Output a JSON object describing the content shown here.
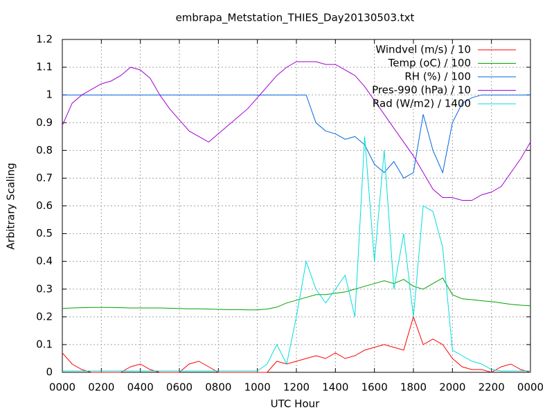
{
  "chart_data": {
    "type": "line",
    "title": "embrapa_Metstation_THIES_Day20130503.txt",
    "x_label": "UTC Hour",
    "y_label": "Arbitrary Scaling",
    "x": [
      0,
      0.5,
      1,
      1.5,
      2,
      2.5,
      3,
      3.5,
      4,
      4.5,
      5,
      5.5,
      6,
      6.5,
      7,
      7.5,
      8,
      8.5,
      9,
      9.5,
      10,
      10.5,
      11,
      11.5,
      12,
      12.5,
      13,
      13.5,
      14,
      14.5,
      15,
      15.5,
      16,
      16.5,
      17,
      17.5,
      18,
      18.5,
      19,
      19.5,
      20,
      20.5,
      21,
      21.5,
      22,
      22.5,
      23,
      23.5,
      24
    ],
    "xlim": [
      0,
      24
    ],
    "xticks": [
      {
        "value": 0,
        "label": "0000"
      },
      {
        "value": 2,
        "label": "0200"
      },
      {
        "value": 4,
        "label": "0400"
      },
      {
        "value": 6,
        "label": "0600"
      },
      {
        "value": 8,
        "label": "0800"
      },
      {
        "value": 10,
        "label": "1000"
      },
      {
        "value": 12,
        "label": "1200"
      },
      {
        "value": 14,
        "label": "1400"
      },
      {
        "value": 16,
        "label": "1600"
      },
      {
        "value": 18,
        "label": "1800"
      },
      {
        "value": 20,
        "label": "2000"
      },
      {
        "value": 22,
        "label": "2200"
      },
      {
        "value": 24,
        "label": "0000"
      }
    ],
    "ylim": [
      0,
      1.2
    ],
    "yticks": [
      0,
      0.1,
      0.2,
      0.3,
      0.4,
      0.5,
      0.6,
      0.7,
      0.8,
      0.9,
      1,
      1.1,
      1.2
    ],
    "grid": true,
    "legend": "top-right",
    "series": [
      {
        "name": "Windvel (m/s) / 10",
        "color": "#ff0000",
        "values": [
          0.07,
          0.03,
          0.01,
          0,
          0,
          0,
          0,
          0.02,
          0.03,
          0.01,
          0,
          0,
          0,
          0.03,
          0.04,
          0.02,
          0,
          0,
          0,
          0,
          0,
          0,
          0.04,
          0.03,
          0.04,
          0.05,
          0.06,
          0.05,
          0.07,
          0.05,
          0.06,
          0.08,
          0.09,
          0.1,
          0.09,
          0.08,
          0.2,
          0.1,
          0.12,
          0.1,
          0.05,
          0.02,
          0.01,
          0.01,
          0,
          0.02,
          0.03,
          0.01,
          0
        ]
      },
      {
        "name": "Temp (oC) / 100",
        "color": "#00a000",
        "values": [
          0.23,
          0.232,
          0.233,
          0.234,
          0.234,
          0.234,
          0.233,
          0.232,
          0.232,
          0.232,
          0.232,
          0.231,
          0.23,
          0.229,
          0.229,
          0.228,
          0.227,
          0.226,
          0.226,
          0.225,
          0.225,
          0.228,
          0.235,
          0.25,
          0.26,
          0.27,
          0.28,
          0.28,
          0.285,
          0.29,
          0.3,
          0.31,
          0.32,
          0.33,
          0.32,
          0.335,
          0.31,
          0.3,
          0.32,
          0.34,
          0.28,
          0.265,
          0.262,
          0.258,
          0.255,
          0.25,
          0.245,
          0.242,
          0.24
        ]
      },
      {
        "name": "RH (%) / 100",
        "color": "#0066dd",
        "values": [
          1,
          1,
          1,
          1,
          1,
          1,
          1,
          1,
          1,
          1,
          1,
          1,
          1,
          1,
          1,
          1,
          1,
          1,
          1,
          1,
          1,
          1,
          1,
          1,
          1,
          1,
          0.9,
          0.87,
          0.86,
          0.84,
          0.85,
          0.82,
          0.75,
          0.72,
          0.76,
          0.7,
          0.72,
          0.93,
          0.8,
          0.72,
          0.9,
          0.97,
          0.99,
          1,
          1,
          1,
          1,
          1,
          1
        ]
      },
      {
        "name": "Pres-990 (hPa) / 10",
        "color": "#a000d0",
        "values": [
          0.89,
          0.97,
          1.0,
          1.02,
          1.04,
          1.05,
          1.07,
          1.1,
          1.09,
          1.06,
          1.0,
          0.95,
          0.91,
          0.87,
          0.85,
          0.83,
          0.86,
          0.89,
          0.92,
          0.95,
          0.99,
          1.03,
          1.07,
          1.1,
          1.12,
          1.12,
          1.12,
          1.11,
          1.11,
          1.09,
          1.07,
          1.03,
          0.98,
          0.93,
          0.88,
          0.83,
          0.78,
          0.72,
          0.66,
          0.63,
          0.63,
          0.62,
          0.62,
          0.64,
          0.65,
          0.67,
          0.72,
          0.77,
          0.83
        ]
      },
      {
        "name": "Rad (W/m2) / 1400",
        "color": "#00dddd",
        "values": [
          0.005,
          0.005,
          0.005,
          0.005,
          0.005,
          0.005,
          0.005,
          0.005,
          0.005,
          0.005,
          0.005,
          0.005,
          0.005,
          0.005,
          0.005,
          0.005,
          0.005,
          0.005,
          0.005,
          0.005,
          0.005,
          0.03,
          0.1,
          0.03,
          0.2,
          0.4,
          0.3,
          0.25,
          0.3,
          0.35,
          0.2,
          0.85,
          0.4,
          0.8,
          0.3,
          0.5,
          0.2,
          0.6,
          0.58,
          0.45,
          0.08,
          0.06,
          0.04,
          0.03,
          0.01,
          0.005,
          0.005,
          0.005,
          0.005
        ]
      }
    ]
  }
}
